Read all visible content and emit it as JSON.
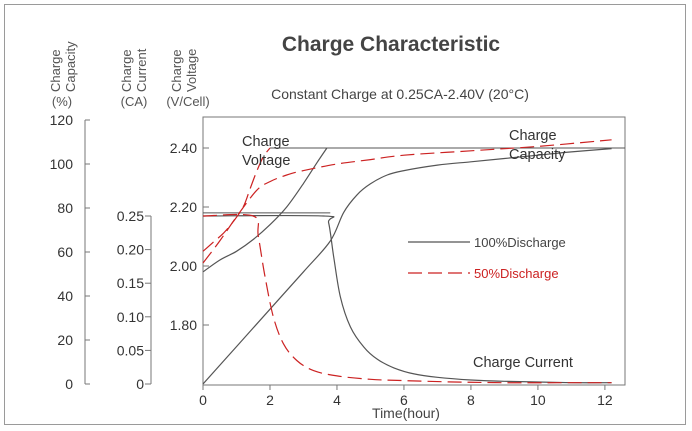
{
  "chart_data": {
    "type": "line",
    "title": "Charge Characteristic",
    "subtitle": "Constant Charge at 0.25CA-2.40V  (20°C)",
    "xlabel": "Time(hour)",
    "xlim": [
      0,
      12.6
    ],
    "xticks": [
      "0",
      "2",
      "4",
      "6",
      "8",
      "10",
      "12"
    ],
    "axes": {
      "capacity": {
        "label_lines": [
          "Charge",
          "Capacity"
        ],
        "unit": "(%)",
        "ticks": [
          "120",
          "100",
          "80",
          "60",
          "40",
          "20",
          "0"
        ],
        "range": [
          0,
          120
        ]
      },
      "current": {
        "label_lines": [
          "Charge",
          "Current"
        ],
        "unit": "(CA)",
        "ticks": [
          "0.25",
          "0.20",
          "0.15",
          "0.10",
          "0.05",
          "0"
        ],
        "range": [
          0,
          0.25
        ]
      },
      "voltage": {
        "label_lines": [
          "Charge",
          "Voltage"
        ],
        "unit": "(V/Cell)",
        "ticks": [
          "2.40",
          "2.20",
          "2.00",
          "1.80"
        ],
        "range": [
          1.6,
          2.43
        ]
      }
    },
    "legend": {
      "position": "center-right",
      "items": [
        {
          "label": "100%Discharge",
          "color": "#555555",
          "style": "solid"
        },
        {
          "label": "50%Discharge",
          "color": "#cc2222",
          "style": "dashed"
        }
      ]
    },
    "annotations": {
      "voltage": [
        "Charge",
        "Voltage"
      ],
      "capacity": [
        "Charge",
        "Capacity"
      ],
      "current": [
        "Charge Current"
      ]
    },
    "reference_lines": [
      {
        "axis": "voltage",
        "value": 2.4,
        "x_range": [
          2.0,
          12.6
        ]
      },
      {
        "axis": "voltage",
        "value": 2.18,
        "x_range": [
          0,
          3.8
        ]
      }
    ],
    "series": [
      {
        "group": "100%Discharge",
        "quantity": "Charge Voltage",
        "axis": "voltage",
        "color": "#555555",
        "dash": false,
        "x": [
          0,
          0.5,
          1.0,
          1.5,
          2.0,
          2.5,
          3.0,
          3.4,
          3.7
        ],
        "y": [
          1.98,
          2.02,
          2.05,
          2.09,
          2.14,
          2.2,
          2.28,
          2.35,
          2.4
        ]
      },
      {
        "group": "100%Discharge",
        "quantity": "Charge Capacity",
        "axis": "capacity",
        "color": "#555555",
        "dash": false,
        "x": [
          0,
          1,
          2,
          3,
          3.8,
          4.2,
          4.6,
          5,
          5.5,
          6,
          7,
          8,
          9,
          10,
          11,
          12.2
        ],
        "y": [
          0,
          17,
          34,
          51,
          65,
          78,
          86,
          91,
          95,
          97,
          99.5,
          101,
          102.5,
          104,
          105.5,
          107
        ]
      },
      {
        "group": "100%Discharge",
        "quantity": "Charge Current",
        "axis": "current",
        "color": "#555555",
        "dash": false,
        "x": [
          0,
          3.6,
          3.75,
          3.9,
          4.1,
          4.4,
          4.8,
          5.2,
          5.7,
          6.3,
          7,
          8,
          9,
          10,
          11,
          12.2
        ],
        "y": [
          0.25,
          0.25,
          0.24,
          0.19,
          0.13,
          0.085,
          0.055,
          0.037,
          0.024,
          0.015,
          0.01,
          0.006,
          0.004,
          0.003,
          0.002,
          0.002
        ]
      },
      {
        "group": "50%Discharge",
        "quantity": "Charge Voltage",
        "axis": "voltage",
        "color": "#cc2222",
        "dash": true,
        "x": [
          0,
          0.3,
          0.6,
          0.9,
          1.2,
          1.4,
          1.6,
          1.8,
          2.0
        ],
        "y": [
          2.05,
          2.08,
          2.11,
          2.15,
          2.2,
          2.26,
          2.32,
          2.37,
          2.4
        ]
      },
      {
        "group": "50%Discharge",
        "quantity": "Charge Capacity",
        "axis": "capacity",
        "color": "#cc2222",
        "dash": true,
        "x": [
          0,
          0.5,
          1.0,
          1.6,
          2.0,
          2.5,
          3.0,
          4.0,
          5.0,
          6.0,
          8.0,
          10.0,
          12.2
        ],
        "y": [
          55,
          65,
          76,
          88,
          92,
          95,
          97,
          100,
          102,
          104,
          106,
          108,
          111
        ]
      },
      {
        "group": "50%Discharge",
        "quantity": "Charge Current",
        "axis": "current",
        "color": "#cc2222",
        "dash": true,
        "x": [
          0,
          1.5,
          1.65,
          1.85,
          2.1,
          2.4,
          2.8,
          3.3,
          4.0,
          5.0,
          6.0,
          7.5,
          9.0,
          11.0,
          12.2
        ],
        "y": [
          0.25,
          0.25,
          0.22,
          0.16,
          0.1,
          0.06,
          0.035,
          0.02,
          0.012,
          0.007,
          0.005,
          0.003,
          0.002,
          0.002,
          0.002
        ]
      }
    ]
  }
}
